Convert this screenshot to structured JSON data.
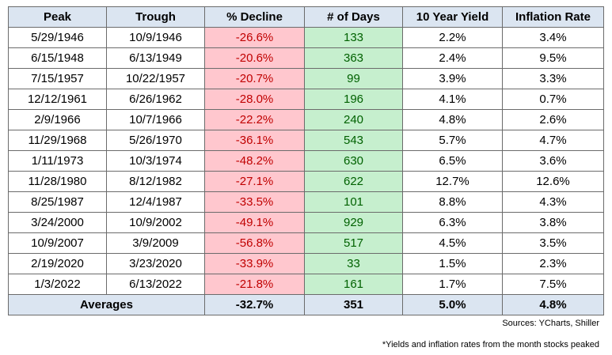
{
  "headers": [
    "Peak",
    "Trough",
    "% Decline",
    "# of Days",
    "10 Year Yield",
    "Inflation Rate"
  ],
  "rows": [
    [
      "5/29/1946",
      "10/9/1946",
      "-26.6%",
      "133",
      "2.2%",
      "3.4%"
    ],
    [
      "6/15/1948",
      "6/13/1949",
      "-20.6%",
      "363",
      "2.4%",
      "9.5%"
    ],
    [
      "7/15/1957",
      "10/22/1957",
      "-20.7%",
      "99",
      "3.9%",
      "3.3%"
    ],
    [
      "12/12/1961",
      "6/26/1962",
      "-28.0%",
      "196",
      "4.1%",
      "0.7%"
    ],
    [
      "2/9/1966",
      "10/7/1966",
      "-22.2%",
      "240",
      "4.8%",
      "2.6%"
    ],
    [
      "11/29/1968",
      "5/26/1970",
      "-36.1%",
      "543",
      "5.7%",
      "4.7%"
    ],
    [
      "1/11/1973",
      "10/3/1974",
      "-48.2%",
      "630",
      "6.5%",
      "3.6%"
    ],
    [
      "11/28/1980",
      "8/12/1982",
      "-27.1%",
      "622",
      "12.7%",
      "12.6%"
    ],
    [
      "8/25/1987",
      "12/4/1987",
      "-33.5%",
      "101",
      "8.8%",
      "4.3%"
    ],
    [
      "3/24/2000",
      "10/9/2002",
      "-49.1%",
      "929",
      "6.3%",
      "3.8%"
    ],
    [
      "10/9/2007",
      "3/9/2009",
      "-56.8%",
      "517",
      "4.5%",
      "3.5%"
    ],
    [
      "2/19/2020",
      "3/23/2020",
      "-33.9%",
      "33",
      "1.5%",
      "2.3%"
    ],
    [
      "1/3/2022",
      "6/13/2022",
      "-21.8%",
      "161",
      "1.7%",
      "7.5%"
    ]
  ],
  "averages": {
    "label": "Averages",
    "decline": "-32.7%",
    "days": "351",
    "yield": "5.0%",
    "inflation": "4.8%"
  },
  "source": "Sources: YCharts, Shiller",
  "footnote": "*Yields and inflation rates from the month stocks peaked",
  "colors": {
    "header_fill": "#dbe5f1",
    "decline_fill": "#ffc7ce",
    "decline_text": "#c00000",
    "days_fill": "#c6efce",
    "days_text": "#006100"
  }
}
